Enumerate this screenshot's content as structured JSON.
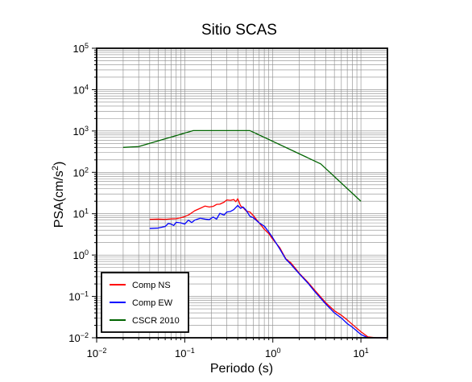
{
  "chart_data": {
    "type": "line",
    "title": "Sitio SCAS",
    "xlabel": "Periodo (s)",
    "ylabel": "PSA(cm/s²)",
    "xscale": "log",
    "yscale": "log",
    "xlim": [
      0.01,
      20
    ],
    "ylim": [
      0.01,
      100000
    ],
    "grid": true,
    "legend_position": "bottom-left",
    "x_ticks": [
      {
        "value": 0.01,
        "base": "10",
        "exp": "−2"
      },
      {
        "value": 0.1,
        "base": "10",
        "exp": "−1"
      },
      {
        "value": 1,
        "base": "10",
        "exp": "0"
      },
      {
        "value": 10,
        "base": "10",
        "exp": "1"
      }
    ],
    "y_ticks": [
      {
        "value": 0.01,
        "base": "10",
        "exp": "−2"
      },
      {
        "value": 0.1,
        "base": "10",
        "exp": "−1"
      },
      {
        "value": 1,
        "base": "10",
        "exp": "0"
      },
      {
        "value": 10,
        "base": "10",
        "exp": "1"
      },
      {
        "value": 100,
        "base": "10",
        "exp": "2"
      },
      {
        "value": 1000,
        "base": "10",
        "exp": "3"
      },
      {
        "value": 10000,
        "base": "10",
        "exp": "4"
      },
      {
        "value": 100000,
        "base": "10",
        "exp": "5"
      }
    ],
    "series": [
      {
        "name": "Comp NS",
        "color": "#ff0000",
        "x": [
          0.04,
          0.05,
          0.06,
          0.07,
          0.08,
          0.09,
          0.1,
          0.11,
          0.12,
          0.13,
          0.15,
          0.17,
          0.19,
          0.21,
          0.23,
          0.25,
          0.28,
          0.3,
          0.33,
          0.36,
          0.38,
          0.4,
          0.43,
          0.46,
          0.5,
          0.55,
          0.6,
          0.7,
          0.8,
          0.9,
          1.0,
          1.2,
          1.4,
          1.6,
          1.8,
          2.0,
          2.5,
          3.0,
          4.0,
          5.0,
          6.0,
          7.0,
          8.0,
          10.0,
          12.0,
          15.0,
          20.0
        ],
        "y": [
          7.3,
          7.4,
          7.3,
          7.5,
          7.6,
          8.0,
          8.5,
          9.3,
          10.5,
          11.8,
          13.5,
          15.3,
          14.5,
          15.0,
          16.8,
          17.0,
          19.0,
          21.5,
          21.0,
          22.0,
          19.5,
          23.0,
          15.5,
          14.0,
          11.5,
          11.0,
          9.0,
          6.0,
          4.2,
          3.3,
          2.4,
          1.5,
          0.82,
          0.65,
          0.48,
          0.36,
          0.22,
          0.14,
          0.07,
          0.045,
          0.035,
          0.027,
          0.021,
          0.014,
          0.0105,
          0.01,
          0.01
        ]
      },
      {
        "name": "Comp EW",
        "color": "#0000ff",
        "x": [
          0.04,
          0.05,
          0.06,
          0.065,
          0.07,
          0.075,
          0.08,
          0.09,
          0.1,
          0.11,
          0.12,
          0.13,
          0.15,
          0.17,
          0.19,
          0.21,
          0.23,
          0.25,
          0.28,
          0.3,
          0.33,
          0.36,
          0.4,
          0.43,
          0.46,
          0.5,
          0.55,
          0.6,
          0.7,
          0.8,
          0.9,
          1.0,
          1.2,
          1.4,
          1.6,
          1.8,
          2.0,
          2.5,
          3.0,
          4.0,
          5.0,
          6.0,
          7.0,
          8.0,
          10.0,
          12.0,
          15.0,
          20.0
        ],
        "y": [
          4.4,
          4.5,
          4.9,
          5.8,
          5.6,
          5.2,
          6.2,
          6.0,
          5.6,
          7.0,
          6.1,
          7.0,
          7.8,
          7.4,
          7.2,
          8.3,
          7.4,
          10.2,
          9.3,
          11.0,
          11.3,
          12.5,
          15.8,
          13.5,
          14.5,
          12.0,
          8.6,
          8.0,
          6.0,
          5.0,
          3.6,
          2.6,
          1.4,
          0.8,
          0.6,
          0.45,
          0.35,
          0.21,
          0.13,
          0.065,
          0.04,
          0.03,
          0.022,
          0.018,
          0.012,
          0.01,
          0.01,
          0.01
        ]
      },
      {
        "name": "CSCR 2010",
        "color": "#006400",
        "x": [
          0.02,
          0.03,
          0.125,
          0.55,
          3.5,
          10.0
        ],
        "y": [
          400,
          420,
          1020,
          1020,
          160,
          20
        ]
      }
    ]
  }
}
